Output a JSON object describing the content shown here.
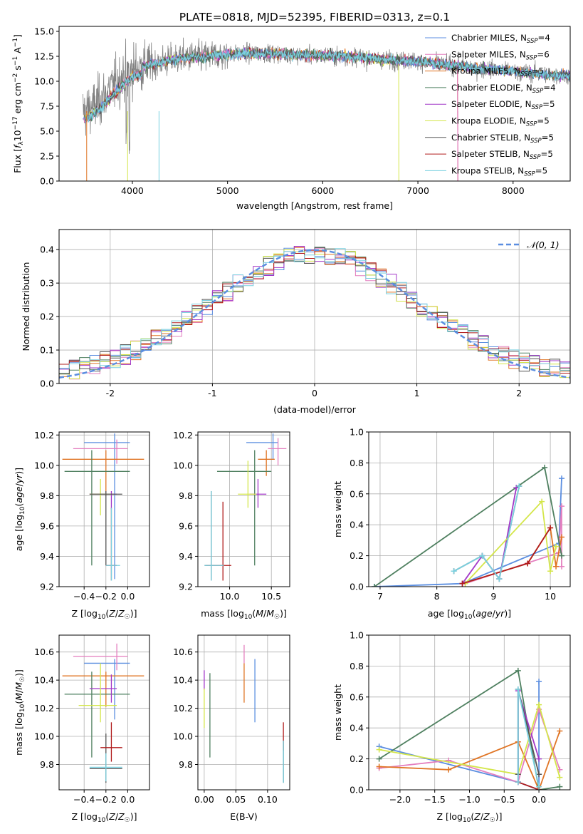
{
  "title": "PLATE=0818, MJD=52395, FIBERID=0313, z=0.1",
  "series_names": [
    "Chabrier MILES, N$_{SSP}$=4",
    "Salpeter MILES, N$_{SSP}$=6",
    "Kroupa MILES, N$_{SSP}$=5",
    "Chabrier ELODIE, N$_{SSP}$=4",
    "Salpeter ELODIE, N$_{SSP}$=5",
    "Kroupa ELODIE, N$_{SSP}$=5",
    "Chabrier STELIB, N$_{SSP}$=5",
    "Salpeter STELIB, N$_{SSP}$=5",
    "Kroupa STELIB, N$_{SSP}$=5"
  ],
  "legend_text": [
    {
      "pre": "Chabrier MILES, N",
      "sub": "SSP",
      "post": "=4"
    },
    {
      "pre": "Salpeter MILES, N",
      "sub": "SSP",
      "post": "=6"
    },
    {
      "pre": "Kroupa MILES, N",
      "sub": "SSP",
      "post": "=5"
    },
    {
      "pre": "Chabrier ELODIE, N",
      "sub": "SSP",
      "post": "=4"
    },
    {
      "pre": "Salpeter ELODIE, N",
      "sub": "SSP",
      "post": "=5"
    },
    {
      "pre": "Kroupa ELODIE, N",
      "sub": "SSP",
      "post": "=5"
    },
    {
      "pre": "Chabrier STELIB, N",
      "sub": "SSP",
      "post": "=5"
    },
    {
      "pre": "Salpeter STELIB, N",
      "sub": "SSP",
      "post": "=5"
    },
    {
      "pre": "Kroupa STELIB, N",
      "sub": "SSP",
      "post": "=5"
    }
  ],
  "series_colors": [
    "#6495ed",
    "#ff69b4",
    "#ff7f0e",
    "#2e8b57",
    "#9400d3",
    "#ffff00",
    "#4f4f4f",
    "#b22222",
    "#87ceeb"
  ],
  "series_colors_draw": [
    "#5b8ee0",
    "#e47fbf",
    "#e07525",
    "#4f8060",
    "#a238c8",
    "#d4e64a",
    "#555555",
    "#b01c1c",
    "#7ad1e0"
  ],
  "chart_data": [
    {
      "id": "spectrum",
      "type": "line",
      "title": "PLATE=0818, MJD=52395, FIBERID=0313, z=0.1",
      "xlabel": "wavelength [Angstrom, rest frame]",
      "ylabel": "Flux [f_λ10^-17 erg cm^-2 s^-1 A^-1]",
      "xlim": [
        3230,
        8600
      ],
      "ylim": [
        0,
        15.5
      ],
      "xticks": [
        4000,
        5000,
        6000,
        7000,
        8000
      ],
      "yticks": [
        0.0,
        2.5,
        5.0,
        7.5,
        10.0,
        12.5,
        15.0
      ],
      "ytick_labels": [
        "0.0",
        "2.5",
        "5.0",
        "7.5",
        "10.0",
        "12.5",
        "15.0"
      ],
      "data_x": [
        3500,
        3600,
        3700,
        3800,
        3900,
        4000,
        4100,
        4200,
        4300,
        4400,
        4500,
        4600,
        4700,
        4800,
        4900,
        5000,
        5200,
        5400,
        5600,
        5800,
        6000,
        6200,
        6400,
        6600,
        6800,
        7000,
        7200,
        7400,
        7600,
        7800,
        8000,
        8200,
        8400,
        8600
      ],
      "data_y": [
        7.0,
        7.5,
        8.5,
        9.5,
        10.5,
        11.2,
        11.5,
        11.7,
        11.9,
        12.1,
        12.3,
        12.4,
        12.4,
        12.5,
        12.6,
        12.7,
        12.8,
        12.8,
        12.7,
        12.6,
        12.6,
        12.5,
        12.4,
        12.2,
        12.1,
        12.0,
        11.7,
        11.6,
        11.3,
        11.2,
        11.0,
        10.8,
        10.6,
        10.6
      ],
      "observed_noise": "±2.5",
      "legend": "upper right"
    },
    {
      "id": "residuals",
      "type": "histogram",
      "xlabel": "(data-model)/error",
      "ylabel": "Normed distribution",
      "xlim": [
        -2.5,
        2.5
      ],
      "ylim": [
        0,
        0.46
      ],
      "xticks": [
        -2,
        -1,
        0,
        1,
        2
      ],
      "yticks": [
        0.0,
        0.1,
        0.2,
        0.3,
        0.4
      ],
      "ytick_labels": [
        "0.0",
        "0.1",
        "0.2",
        "0.3",
        "0.4"
      ],
      "bin_width": 0.1,
      "bin_start": -2.5,
      "reference_curve": {
        "name": "N(0,1)",
        "label_pre": "𝒩(0, 1)",
        "mean": 0,
        "sigma": 1,
        "color": "#5b8ee0"
      },
      "legend": "upper right"
    },
    {
      "id": "age_vs_Z",
      "type": "errorbar",
      "xlabel": "Z [log10(Z/Z☉)]",
      "ylabel": "age  [log10(age/yr)]",
      "xlim": [
        -0.63,
        0.2
      ],
      "ylim": [
        9.2,
        10.22
      ],
      "xticks": [
        -0.4,
        -0.2,
        0.0
      ],
      "xtick_labels": [
        "−0.4",
        "−0.2",
        "0.0"
      ],
      "yticks": [
        9.2,
        9.4,
        9.6,
        9.8,
        10.0,
        10.2
      ],
      "ytick_labels": [
        "9.2",
        "9.4",
        "9.6",
        "9.8",
        "10.0",
        "10.2"
      ],
      "points": [
        {
          "s": 0,
          "x": -0.12,
          "y": 10.15,
          "xerr": [
            0.28,
            0.14
          ],
          "yerr": [
            0.9,
            0.06
          ]
        },
        {
          "s": 1,
          "x": -0.1,
          "y": 10.11,
          "xerr": [
            0.4,
            0.1
          ],
          "yerr": [
            0.1,
            0.06
          ]
        },
        {
          "s": 2,
          "x": -0.2,
          "y": 10.04,
          "xerr": [
            0.4,
            0.35
          ],
          "yerr": [
            0.24,
            0.06
          ]
        },
        {
          "s": 3,
          "x": -0.33,
          "y": 9.96,
          "xerr": [
            0.25,
            0.35
          ],
          "yerr": [
            0.62,
            0.14
          ]
        },
        {
          "s": 4,
          "x": -0.15,
          "y": 9.81,
          "xerr": [
            0.2,
            0.05
          ],
          "yerr": [
            0.1,
            0.02
          ]
        },
        {
          "s": 5,
          "x": -0.25,
          "y": 9.81,
          "xerr": [
            0.1,
            0.1
          ],
          "yerr": [
            0.14,
            0.1
          ]
        },
        {
          "s": 6,
          "x": -0.2,
          "y": 9.81,
          "xerr": [
            0.15,
            0.15
          ],
          "yerr": [
            0.47,
            0.02
          ]
        },
        {
          "s": 7,
          "x": -0.15,
          "y": 9.34,
          "xerr": [
            0.05,
            0.05
          ],
          "yerr": [
            0.1,
            0.38
          ]
        },
        {
          "s": 8,
          "x": -0.15,
          "y": 9.34,
          "xerr": [
            0.05,
            0.08
          ],
          "yerr": [
            0.1,
            0.38
          ]
        }
      ]
    },
    {
      "id": "age_vs_mass",
      "type": "errorbar",
      "xlabel": "mass [log10(M/M☉)]",
      "ylabel": "",
      "xlim": [
        9.62,
        10.72
      ],
      "ylim": [
        9.2,
        10.22
      ],
      "xticks": [
        10.0,
        10.5
      ],
      "xtick_labels": [
        "10.0",
        "10.5"
      ],
      "yticks": [
        9.2,
        9.4,
        9.6,
        9.8,
        10.0,
        10.2
      ],
      "ytick_labels": [
        "9.2",
        "9.4",
        "9.6",
        "9.8",
        "10.0",
        "10.2"
      ],
      "points": [
        {
          "s": 0,
          "x": 10.52,
          "y": 10.15,
          "xerr": [
            0.32,
            0.06
          ],
          "yerr": [
            0.11,
            0.06
          ]
        },
        {
          "s": 1,
          "x": 10.58,
          "y": 10.11,
          "xerr": [
            0.12,
            0.1
          ],
          "yerr": [
            0.11,
            0.07
          ]
        },
        {
          "s": 2,
          "x": 10.44,
          "y": 10.04,
          "xerr": [
            0.1,
            0.1
          ],
          "yerr": [
            0.11,
            0.06
          ]
        },
        {
          "s": 3,
          "x": 10.3,
          "y": 9.96,
          "xerr": [
            0.45,
            0.2
          ],
          "yerr": [
            0.62,
            0.14
          ]
        },
        {
          "s": 4,
          "x": 10.34,
          "y": 9.81,
          "xerr": [
            0.1,
            0.1
          ],
          "yerr": [
            0.09,
            0.1
          ]
        },
        {
          "s": 5,
          "x": 10.22,
          "y": 9.81,
          "xerr": [
            0.12,
            0.1
          ],
          "yerr": [
            0.09,
            0.22
          ]
        },
        {
          "s": 6,
          "x": 9.78,
          "y": 9.34,
          "xerr": [
            0.08,
            0.15
          ],
          "yerr": [
            0.1,
            0.49
          ]
        },
        {
          "s": 7,
          "x": 9.92,
          "y": 9.34,
          "xerr": [
            0.2,
            0.1
          ],
          "yerr": [
            0.1,
            0.42
          ]
        },
        {
          "s": 8,
          "x": 9.78,
          "y": 9.34,
          "xerr": [
            0.08,
            0.15
          ],
          "yerr": [
            0.1,
            0.49
          ]
        }
      ]
    },
    {
      "id": "weight_vs_age",
      "type": "line",
      "xlabel": "age  [log10(age/yr)]",
      "ylabel": "mass weight",
      "xlim": [
        6.8,
        10.35
      ],
      "ylim": [
        0,
        1.0
      ],
      "xticks": [
        7,
        8,
        9,
        10
      ],
      "xtick_labels": [
        "7",
        "8",
        "9",
        "10"
      ],
      "yticks": [
        0.0,
        0.2,
        0.4,
        0.6,
        0.8,
        1.0
      ],
      "ytick_labels": [
        "0.0",
        "0.2",
        "0.4",
        "0.6",
        "0.8",
        "1.0"
      ],
      "series": [
        {
          "s": 0,
          "x": [
            6.9,
            8.45,
            10.15,
            10.2
          ],
          "y": [
            0.0,
            0.02,
            0.28,
            0.7
          ]
        },
        {
          "s": 1,
          "x": [
            8.5,
            10.15,
            10.2,
            10.2
          ],
          "y": [
            0.02,
            0.22,
            0.52,
            0.13
          ]
        },
        {
          "s": 2,
          "x": [
            8.45,
            9.6,
            10.0,
            10.1,
            10.2
          ],
          "y": [
            0.02,
            0.15,
            0.38,
            0.13,
            0.32
          ]
        },
        {
          "s": 3,
          "x": [
            6.9,
            9.9,
            10.2
          ],
          "y": [
            0.0,
            0.77,
            0.2
          ]
        },
        {
          "s": 4,
          "x": [
            8.45,
            8.8,
            9.1,
            9.4
          ],
          "y": [
            0.02,
            0.2,
            0.05,
            0.64
          ]
        },
        {
          "s": 5,
          "x": [
            8.5,
            9.85,
            10.0,
            10.1
          ],
          "y": [
            0.02,
            0.55,
            0.1,
            0.26
          ]
        },
        {
          "s": 6,
          "x": [
            8.3,
            8.8,
            9.1,
            9.45
          ],
          "y": [
            0.1,
            0.2,
            0.05,
            0.65
          ]
        },
        {
          "s": 7,
          "x": [
            8.45,
            9.6,
            10.0
          ],
          "y": [
            0.02,
            0.15,
            0.38
          ]
        },
        {
          "s": 8,
          "x": [
            8.3,
            8.8,
            9.1,
            9.45
          ],
          "y": [
            0.1,
            0.2,
            0.05,
            0.65
          ]
        }
      ]
    },
    {
      "id": "mass_vs_Z",
      "type": "errorbar",
      "xlabel": "Z [log10(Z/Z☉)]",
      "ylabel": "mass [log10(M/M☉)]",
      "xlim": [
        -0.63,
        0.2
      ],
      "ylim": [
        9.62,
        10.72
      ],
      "xticks": [
        -0.4,
        -0.2,
        0.0
      ],
      "xtick_labels": [
        "−0.4",
        "−0.2",
        "0.0"
      ],
      "yticks": [
        9.8,
        10.0,
        10.2,
        10.4,
        10.6
      ],
      "ytick_labels": [
        "9.8",
        "10.0",
        "10.2",
        "10.4",
        "10.6"
      ],
      "points": [
        {
          "s": 0,
          "x": -0.12,
          "y": 10.52,
          "xerr": [
            0.28,
            0.14
          ],
          "yerr": [
            0.4,
            0.03
          ]
        },
        {
          "s": 1,
          "x": -0.1,
          "y": 10.57,
          "xerr": [
            0.4,
            0.1
          ],
          "yerr": [
            0.1,
            0.09
          ]
        },
        {
          "s": 2,
          "x": -0.2,
          "y": 10.43,
          "xerr": [
            0.4,
            0.35
          ],
          "yerr": [
            0.22,
            0.03
          ]
        },
        {
          "s": 3,
          "x": -0.33,
          "y": 10.3,
          "xerr": [
            0.25,
            0.35
          ],
          "yerr": [
            0.45,
            0.16
          ]
        },
        {
          "s": 4,
          "x": -0.15,
          "y": 10.34,
          "xerr": [
            0.2,
            0.05
          ],
          "yerr": [
            0.1,
            0.1
          ]
        },
        {
          "s": 5,
          "x": -0.25,
          "y": 10.22,
          "xerr": [
            0.2,
            0.15
          ],
          "yerr": [
            0.12,
            0.3
          ]
        },
        {
          "s": 6,
          "x": -0.2,
          "y": 9.77,
          "xerr": [
            0.15,
            0.15
          ],
          "yerr": [
            0.1,
            0.25
          ]
        },
        {
          "s": 7,
          "x": -0.15,
          "y": 9.92,
          "xerr": [
            0.1,
            0.1
          ],
          "yerr": [
            0.1,
            0.18
          ]
        },
        {
          "s": 8,
          "x": -0.2,
          "y": 9.78,
          "xerr": [
            0.15,
            0.15
          ],
          "yerr": [
            0.1,
            0.1
          ]
        }
      ]
    },
    {
      "id": "mass_vs_ebv",
      "type": "errorbar",
      "xlabel": "E(B-V)",
      "ylabel": "",
      "xlim": [
        -0.01,
        0.135
      ],
      "ylim": [
        9.62,
        10.72
      ],
      "xticks": [
        0.0,
        0.05,
        0.1
      ],
      "xtick_labels": [
        "0.00",
        "0.05",
        "0.10"
      ],
      "yticks": [
        9.8,
        10.0,
        10.2,
        10.4,
        10.6
      ],
      "ytick_labels": [
        "9.8",
        "10.0",
        "10.2",
        "10.4",
        "10.6"
      ],
      "points": [
        {
          "s": 0,
          "x": 0.08,
          "y": 10.3,
          "xerr": [
            0,
            0
          ],
          "yerr": [
            0.2,
            0.25
          ]
        },
        {
          "s": 1,
          "x": 0.063,
          "y": 10.55,
          "xerr": [
            0,
            0
          ],
          "yerr": [
            0.03,
            0.1
          ]
        },
        {
          "s": 2,
          "x": 0.063,
          "y": 10.38,
          "xerr": [
            0,
            0
          ],
          "yerr": [
            0.14,
            0.14
          ]
        },
        {
          "s": 3,
          "x": 0.009,
          "y": 10.15,
          "xerr": [
            0,
            0
          ],
          "yerr": [
            0.3,
            0.3
          ]
        },
        {
          "s": 4,
          "x": 0.0,
          "y": 10.4,
          "xerr": [
            0,
            0
          ],
          "yerr": [
            0.07,
            0.07
          ]
        },
        {
          "s": 5,
          "x": 0.0,
          "y": 10.2,
          "xerr": [
            0,
            0
          ],
          "yerr": [
            0.14,
            0.14
          ]
        },
        {
          "s": 6,
          "x": 0.125,
          "y": 9.82,
          "xerr": [
            0,
            0
          ],
          "yerr": [
            0.15,
            0.15
          ]
        },
        {
          "s": 7,
          "x": 0.125,
          "y": 10.0,
          "xerr": [
            0,
            0
          ],
          "yerr": [
            0.1,
            0.1
          ]
        },
        {
          "s": 8,
          "x": 0.125,
          "y": 9.82,
          "xerr": [
            0,
            0
          ],
          "yerr": [
            0.15,
            0.15
          ]
        }
      ]
    },
    {
      "id": "weight_vs_Z",
      "type": "line",
      "xlabel": "Z [log10(Z/Z☉)]",
      "ylabel": "mass weight",
      "xlim": [
        -2.45,
        0.45
      ],
      "ylim": [
        0,
        1.0
      ],
      "xticks": [
        -2.0,
        -1.5,
        -1.0,
        -0.5,
        0.0
      ],
      "xtick_labels": [
        "−2.0",
        "−1.5",
        "−1.0",
        "−0.5",
        "0.0"
      ],
      "yticks": [
        0.0,
        0.2,
        0.4,
        0.6,
        0.8,
        1.0
      ],
      "ytick_labels": [
        "0.0",
        "0.2",
        "0.4",
        "0.6",
        "0.8",
        "1.0"
      ],
      "series": [
        {
          "s": 0,
          "x": [
            -2.3,
            -0.3,
            0.0,
            0.0
          ],
          "y": [
            0.28,
            0.05,
            0.0,
            0.7
          ]
        },
        {
          "s": 1,
          "x": [
            -2.3,
            -1.3,
            -0.3,
            0.0,
            0.3
          ],
          "y": [
            0.14,
            0.19,
            0.05,
            0.52,
            0.13
          ]
        },
        {
          "s": 2,
          "x": [
            -2.3,
            -1.3,
            -0.3,
            0.0,
            0.3
          ],
          "y": [
            0.15,
            0.13,
            0.31,
            0.0,
            0.38
          ]
        },
        {
          "s": 3,
          "x": [
            -2.3,
            -0.3,
            0.0,
            0.3
          ],
          "y": [
            0.2,
            0.77,
            0.0,
            0.02
          ]
        },
        {
          "s": 4,
          "x": [
            -0.3,
            -0.3,
            0.0
          ],
          "y": [
            0.05,
            0.64,
            0.2
          ]
        },
        {
          "s": 5,
          "x": [
            -2.3,
            -0.3,
            0.0,
            0.3
          ],
          "y": [
            0.26,
            0.1,
            0.55,
            0.08
          ]
        },
        {
          "s": 6,
          "x": [
            -0.3,
            -0.3,
            0.0
          ],
          "y": [
            0.1,
            0.65,
            0.1
          ]
        },
        {
          "s": 7,
          "x": [
            -0.3,
            0.0
          ],
          "y": [
            0.05,
            0.0
          ]
        },
        {
          "s": 8,
          "x": [
            -0.3,
            -0.3,
            0.0
          ],
          "y": [
            0.05,
            0.65,
            0.02
          ]
        }
      ]
    }
  ]
}
